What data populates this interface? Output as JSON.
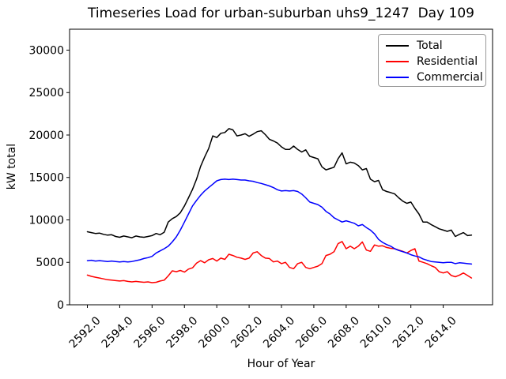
{
  "title": "Timeseries Load for urban-suburban uhs9_1247  Day 109",
  "chart_data": {
    "type": "line",
    "title": "Timeseries Load for urban-suburban uhs9_1247  Day 109",
    "xlabel": "Hour of Year",
    "ylabel": "kW total",
    "grid": false,
    "legend_position": "upper right",
    "xlim": [
      2590.9,
      2617.05
    ],
    "ylim": [
      0,
      32465
    ],
    "x_ticks": [
      2592,
      2594,
      2596,
      2598,
      2600,
      2602,
      2604,
      2606,
      2608,
      2610,
      2612,
      2614
    ],
    "x_tick_labels": [
      "2592.0",
      "2594.0",
      "2596.0",
      "2598.0",
      "2600.0",
      "2602.0",
      "2604.0",
      "2606.0",
      "2608.0",
      "2610.0",
      "2612.0",
      "2614.0"
    ],
    "y_ticks": [
      0,
      5000,
      10000,
      15000,
      20000,
      25000,
      30000
    ],
    "y_tick_labels": [
      "0",
      "5000",
      "10000",
      "15000",
      "20000",
      "25000",
      "30000"
    ],
    "x": [
      2592.0,
      2592.25,
      2592.5,
      2592.75,
      2593.0,
      2593.25,
      2593.5,
      2593.75,
      2594.0,
      2594.25,
      2594.5,
      2594.75,
      2595.0,
      2595.25,
      2595.5,
      2595.75,
      2596.0,
      2596.25,
      2596.5,
      2596.75,
      2597.0,
      2597.25,
      2597.5,
      2597.75,
      2598.0,
      2598.25,
      2598.5,
      2598.75,
      2599.0,
      2599.25,
      2599.5,
      2599.75,
      2600.0,
      2600.25,
      2600.5,
      2600.75,
      2601.0,
      2601.25,
      2601.5,
      2601.75,
      2602.0,
      2602.25,
      2602.5,
      2602.75,
      2603.0,
      2603.25,
      2603.5,
      2603.75,
      2604.0,
      2604.25,
      2604.5,
      2604.75,
      2605.0,
      2605.25,
      2605.5,
      2605.75,
      2606.0,
      2606.25,
      2606.5,
      2606.75,
      2607.0,
      2607.25,
      2607.5,
      2607.75,
      2608.0,
      2608.25,
      2608.5,
      2608.75,
      2609.0,
      2609.25,
      2609.5,
      2609.75,
      2610.0,
      2610.25,
      2610.5,
      2610.75,
      2611.0,
      2611.25,
      2611.5,
      2611.75,
      2612.0,
      2612.25,
      2612.5,
      2612.75,
      2613.0,
      2613.25,
      2613.5,
      2613.75,
      2614.0,
      2614.25,
      2614.5,
      2614.75,
      2615.0,
      2615.25,
      2615.5,
      2615.75
    ],
    "series": [
      {
        "name": "Total",
        "color": "#000000",
        "values": [
          8600,
          8500,
          8400,
          8450,
          8300,
          8200,
          8250,
          8050,
          7950,
          8100,
          8000,
          7900,
          8100,
          8000,
          7950,
          8050,
          8150,
          8400,
          8250,
          8550,
          9750,
          10150,
          10400,
          10850,
          11650,
          12600,
          13600,
          14800,
          16300,
          17400,
          18400,
          19900,
          19700,
          20200,
          20300,
          20750,
          20600,
          19900,
          20000,
          20150,
          19850,
          20100,
          20400,
          20500,
          20050,
          19500,
          19300,
          19050,
          18600,
          18300,
          18300,
          18700,
          18300,
          18000,
          18250,
          17500,
          17350,
          17200,
          16250,
          15900,
          16050,
          16200,
          17200,
          17900,
          16600,
          16800,
          16700,
          16400,
          15900,
          16050,
          14800,
          14500,
          14650,
          13550,
          13350,
          13220,
          13060,
          12600,
          12200,
          11950,
          12100,
          11350,
          10700,
          9750,
          9750,
          9450,
          9200,
          8950,
          8800,
          8650,
          8800,
          8050,
          8300,
          8500,
          8150,
          8200
        ]
      },
      {
        "name": "Residential",
        "color": "#ff0000",
        "values": [
          3500,
          3350,
          3250,
          3150,
          3050,
          2950,
          2900,
          2850,
          2800,
          2850,
          2750,
          2700,
          2750,
          2700,
          2650,
          2700,
          2600,
          2650,
          2800,
          2900,
          3400,
          4000,
          3900,
          4050,
          3850,
          4200,
          4350,
          4900,
          5200,
          4950,
          5300,
          5450,
          5150,
          5500,
          5350,
          5950,
          5800,
          5600,
          5500,
          5350,
          5500,
          6100,
          6250,
          5800,
          5500,
          5450,
          5050,
          5150,
          4850,
          5000,
          4400,
          4250,
          4850,
          5000,
          4400,
          4250,
          4400,
          4550,
          4850,
          5800,
          5950,
          6250,
          7200,
          7450,
          6600,
          6900,
          6600,
          6900,
          7400,
          6450,
          6300,
          7050,
          6900,
          6950,
          6750,
          6650,
          6600,
          6450,
          6300,
          6100,
          6400,
          6600,
          5150,
          5000,
          4850,
          4600,
          4400,
          3900,
          3750,
          3900,
          3450,
          3300,
          3500,
          3750,
          3450,
          3150
        ]
      },
      {
        "name": "Commercial",
        "color": "#0000ff",
        "values": [
          5200,
          5250,
          5150,
          5200,
          5150,
          5100,
          5150,
          5100,
          5050,
          5100,
          5050,
          5100,
          5200,
          5300,
          5450,
          5550,
          5700,
          6100,
          6350,
          6600,
          6900,
          7400,
          8000,
          8800,
          9750,
          10700,
          11650,
          12300,
          12900,
          13400,
          13800,
          14200,
          14600,
          14750,
          14800,
          14750,
          14800,
          14750,
          14700,
          14700,
          14600,
          14550,
          14400,
          14300,
          14150,
          14000,
          13800,
          13550,
          13400,
          13450,
          13400,
          13450,
          13350,
          13050,
          12600,
          12100,
          11950,
          11800,
          11500,
          11000,
          10700,
          10250,
          10000,
          9750,
          9900,
          9750,
          9600,
          9300,
          9450,
          9100,
          8800,
          8350,
          7700,
          7350,
          7100,
          6900,
          6600,
          6400,
          6250,
          6100,
          5900,
          5750,
          5650,
          5400,
          5250,
          5100,
          5050,
          5000,
          4950,
          5000,
          5000,
          4850,
          4950,
          4900,
          4850,
          4800
        ]
      }
    ]
  }
}
